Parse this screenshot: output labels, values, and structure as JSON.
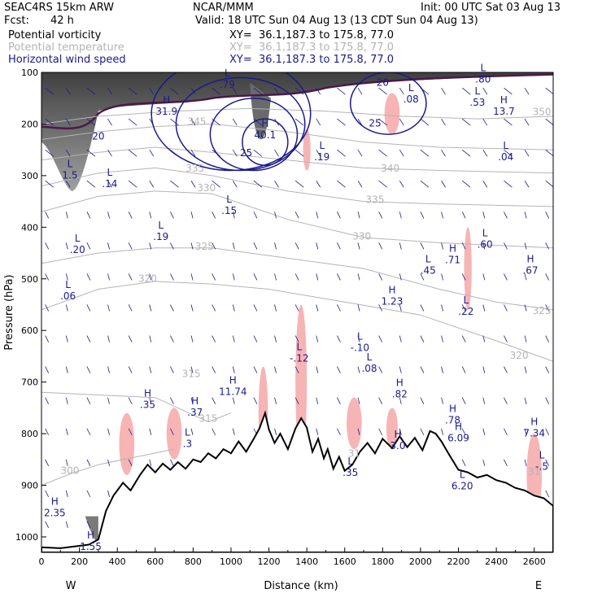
{
  "header": {
    "model": "SEAC4RS 15km ARW",
    "org": "NCAR/MMM",
    "init": "Init: 00 UTC Sat 03 Aug 13",
    "fcst_label": "Fcst:",
    "fcst_value": "42 h",
    "valid": "Valid: 18 UTC Sun 04 Aug 13 (13 CDT Sun 04 Aug 13)",
    "fields": [
      {
        "name": "Potential vorticity",
        "xy": "XY=  36.1,187.3 to 175.8, 77.0"
      },
      {
        "name": "Potential temperature",
        "xy": "XY=  36.1,187.3 to 175.8, 77.0"
      },
      {
        "name": "Horizontal wind speed",
        "xy": "XY=  36.1,187.3 to 175.8, 77.0"
      }
    ]
  },
  "colors": {
    "pv_field": "#000000",
    "theta_field": "#b4b4b4",
    "wind_field": "#1a1a8c",
    "terrain_fill": "#ffffff",
    "pink_shading": "#f7b4b4",
    "tropopause": "#4a1a4a"
  },
  "chart_data": {
    "type": "cross-section",
    "xlabel": "Distance (km)",
    "ylabel": "Pressure (hPa)",
    "xlim": [
      0,
      2700
    ],
    "ylim": [
      1030,
      100
    ],
    "x_ticks": [
      0,
      200,
      400,
      600,
      800,
      1000,
      1200,
      1400,
      1600,
      1800,
      2000,
      2200,
      2400,
      2600
    ],
    "y_ticks": [
      100,
      200,
      300,
      400,
      500,
      600,
      700,
      800,
      900,
      1000
    ],
    "left_end": "W",
    "right_end": "E",
    "theta_labels": [
      {
        "text": "300",
        "x": 150,
        "p": 878
      },
      {
        "text": "315",
        "x": 880,
        "p": 777
      },
      {
        "text": "315",
        "x": 790,
        "p": 690
      },
      {
        "text": "320",
        "x": 560,
        "p": 506
      },
      {
        "text": "320",
        "x": 2520,
        "p": 655
      },
      {
        "text": "325",
        "x": 860,
        "p": 444
      },
      {
        "text": "325",
        "x": 2640,
        "p": 568
      },
      {
        "text": "330",
        "x": 870,
        "p": 330
      },
      {
        "text": "330",
        "x": 1690,
        "p": 424
      },
      {
        "text": "335",
        "x": 810,
        "p": 292
      },
      {
        "text": "335",
        "x": 1760,
        "p": 353
      },
      {
        "text": "340",
        "x": 1840,
        "p": 292
      },
      {
        "text": "345",
        "x": 820,
        "p": 202
      },
      {
        "text": "350",
        "x": 2640,
        "p": 183
      },
      {
        "text": "31",
        "x": 1650,
        "p": 845
      },
      {
        "text": "31",
        "x": 2600,
        "p": 880
      }
    ],
    "wind_speed_labels": [
      {
        "text": "20",
        "x": 300,
        "p": 230
      },
      {
        "text": "25",
        "x": 1080,
        "p": 262
      },
      {
        "text": "25",
        "x": 1760,
        "p": 205
      },
      {
        "text": "20",
        "x": 1800,
        "p": 126
      }
    ],
    "highs": [
      {
        "text": "31.9",
        "x": 660,
        "p": 182
      },
      {
        "text": "40.1",
        "x": 1180,
        "p": 228
      },
      {
        "text": "13.7",
        "x": 2440,
        "p": 182
      },
      {
        "text": "1.23",
        "x": 1850,
        "p": 550
      },
      {
        "text": ".71",
        "x": 2170,
        "p": 470
      },
      {
        "text": ".67",
        "x": 2580,
        "p": 490
      },
      {
        "text": "11.74",
        "x": 1010,
        "p": 725
      },
      {
        "text": ".35",
        "x": 560,
        "p": 750
      },
      {
        "text": ".37",
        "x": 810,
        "p": 765
      },
      {
        "text": ".82",
        "x": 1890,
        "p": 730
      },
      {
        "text": ".78",
        "x": 2170,
        "p": 780
      },
      {
        "text": "6.09",
        "x": 2200,
        "p": 815
      },
      {
        "text": "7.34",
        "x": 2600,
        "p": 805
      },
      {
        "text": "2.35",
        "x": 70,
        "p": 960
      },
      {
        "text": "1.55",
        "x": 260,
        "p": 1025
      },
      {
        "text": "3.0",
        "x": 1880,
        "p": 830
      }
    ],
    "lows": [
      {
        "text": "1.5",
        "x": 150,
        "p": 306
      },
      {
        "text": ".14",
        "x": 360,
        "p": 322
      },
      {
        "text": ".20",
        "x": 190,
        "p": 450
      },
      {
        "text": ".19",
        "x": 630,
        "p": 425
      },
      {
        "text": ".15",
        "x": 990,
        "p": 374
      },
      {
        "text": ".06",
        "x": 140,
        "p": 540
      },
      {
        "text": ".19",
        "x": 1480,
        "p": 270
      },
      {
        "text": ".04",
        "x": 2450,
        "p": 270
      },
      {
        "text": ".45",
        "x": 2040,
        "p": 490
      },
      {
        "text": ".60",
        "x": 2340,
        "p": 440
      },
      {
        "text": ".22",
        "x": 2240,
        "p": 570
      },
      {
        "text": "-.12",
        "x": 1360,
        "p": 660
      },
      {
        "text": "-.10",
        "x": 1680,
        "p": 640
      },
      {
        "text": ".08",
        "x": 1730,
        "p": 680
      },
      {
        "text": ".3",
        "x": 770,
        "p": 826
      },
      {
        "text": ".35",
        "x": 1630,
        "p": 882
      },
      {
        "text": "6.20",
        "x": 2220,
        "p": 908
      },
      {
        "text": "-.5",
        "x": 2640,
        "p": 870
      },
      {
        "text": ".08",
        "x": 1950,
        "p": 158
      },
      {
        "text": ".53",
        "x": 2300,
        "p": 165
      },
      {
        "text": ".79",
        "x": 980,
        "p": 130
      },
      {
        "text": ".80",
        "x": 2330,
        "p": 120
      }
    ],
    "terrain": [
      [
        0,
        1020
      ],
      [
        100,
        1022
      ],
      [
        250,
        1015
      ],
      [
        300,
        1005
      ],
      [
        340,
        950
      ],
      [
        380,
        920
      ],
      [
        430,
        895
      ],
      [
        470,
        910
      ],
      [
        520,
        880
      ],
      [
        560,
        860
      ],
      [
        600,
        875
      ],
      [
        640,
        858
      ],
      [
        680,
        870
      ],
      [
        720,
        855
      ],
      [
        760,
        868
      ],
      [
        800,
        850
      ],
      [
        840,
        855
      ],
      [
        880,
        838
      ],
      [
        920,
        848
      ],
      [
        960,
        830
      ],
      [
        1000,
        838
      ],
      [
        1040,
        815
      ],
      [
        1080,
        835
      ],
      [
        1120,
        810
      ],
      [
        1150,
        790
      ],
      [
        1180,
        760
      ],
      [
        1200,
        792
      ],
      [
        1230,
        818
      ],
      [
        1260,
        800
      ],
      [
        1300,
        830
      ],
      [
        1340,
        790
      ],
      [
        1370,
        770
      ],
      [
        1400,
        788
      ],
      [
        1430,
        835
      ],
      [
        1460,
        810
      ],
      [
        1490,
        848
      ],
      [
        1510,
        830
      ],
      [
        1540,
        868
      ],
      [
        1570,
        845
      ],
      [
        1600,
        872
      ],
      [
        1640,
        860
      ],
      [
        1680,
        835
      ],
      [
        1720,
        818
      ],
      [
        1760,
        838
      ],
      [
        1800,
        810
      ],
      [
        1850,
        828
      ],
      [
        1890,
        805
      ],
      [
        1930,
        826
      ],
      [
        1970,
        808
      ],
      [
        2010,
        832
      ],
      [
        2050,
        795
      ],
      [
        2080,
        800
      ],
      [
        2110,
        815
      ],
      [
        2150,
        840
      ],
      [
        2200,
        870
      ],
      [
        2250,
        875
      ],
      [
        2300,
        885
      ],
      [
        2350,
        880
      ],
      [
        2400,
        890
      ],
      [
        2450,
        895
      ],
      [
        2500,
        905
      ],
      [
        2550,
        910
      ],
      [
        2600,
        920
      ],
      [
        2650,
        925
      ],
      [
        2700,
        940
      ]
    ],
    "theta_lines": [
      {
        "value": 300,
        "pts": [
          [
            0,
            900
          ],
          [
            150,
            878
          ],
          [
            300,
            860
          ],
          [
            500,
            845
          ],
          [
            700,
            830
          ]
        ]
      },
      {
        "value": 315,
        "pts": [
          [
            0,
            720
          ],
          [
            300,
            725
          ],
          [
            600,
            730
          ],
          [
            880,
            777
          ],
          [
            1000,
            760
          ]
        ]
      },
      {
        "value": 320,
        "pts": [
          [
            0,
            560
          ],
          [
            300,
            520
          ],
          [
            600,
            505
          ],
          [
            900,
            510
          ],
          [
            1200,
            520
          ],
          [
            1600,
            545
          ],
          [
            2000,
            570
          ],
          [
            2400,
            620
          ],
          [
            2700,
            660
          ]
        ]
      },
      {
        "value": 325,
        "pts": [
          [
            0,
            470
          ],
          [
            300,
            450
          ],
          [
            600,
            440
          ],
          [
            900,
            440
          ],
          [
            1300,
            460
          ],
          [
            1700,
            480
          ],
          [
            2100,
            520
          ],
          [
            2400,
            545
          ],
          [
            2700,
            560
          ]
        ]
      },
      {
        "value": 330,
        "pts": [
          [
            0,
            370
          ],
          [
            300,
            340
          ],
          [
            600,
            330
          ],
          [
            900,
            335
          ],
          [
            1300,
            385
          ],
          [
            1700,
            420
          ],
          [
            2100,
            430
          ],
          [
            2700,
            440
          ]
        ]
      },
      {
        "value": 335,
        "pts": [
          [
            0,
            320
          ],
          [
            300,
            295
          ],
          [
            600,
            285
          ],
          [
            900,
            300
          ],
          [
            1300,
            330
          ],
          [
            1700,
            350
          ],
          [
            2100,
            355
          ],
          [
            2700,
            360
          ]
        ]
      },
      {
        "value": 340,
        "pts": [
          [
            0,
            270
          ],
          [
            300,
            255
          ],
          [
            600,
            245
          ],
          [
            900,
            255
          ],
          [
            1300,
            270
          ],
          [
            1700,
            285
          ],
          [
            2100,
            290
          ],
          [
            2700,
            295
          ]
        ]
      },
      {
        "value": 345,
        "pts": [
          [
            0,
            230
          ],
          [
            300,
            215
          ],
          [
            600,
            205
          ],
          [
            900,
            200
          ],
          [
            1300,
            215
          ],
          [
            1700,
            235
          ],
          [
            2100,
            245
          ],
          [
            2700,
            250
          ]
        ]
      },
      {
        "value": 350,
        "pts": [
          [
            0,
            200
          ],
          [
            300,
            185
          ],
          [
            700,
            175
          ],
          [
            1100,
            170
          ],
          [
            1500,
            175
          ],
          [
            1900,
            185
          ],
          [
            2300,
            190
          ],
          [
            2700,
            185
          ]
        ]
      }
    ]
  }
}
